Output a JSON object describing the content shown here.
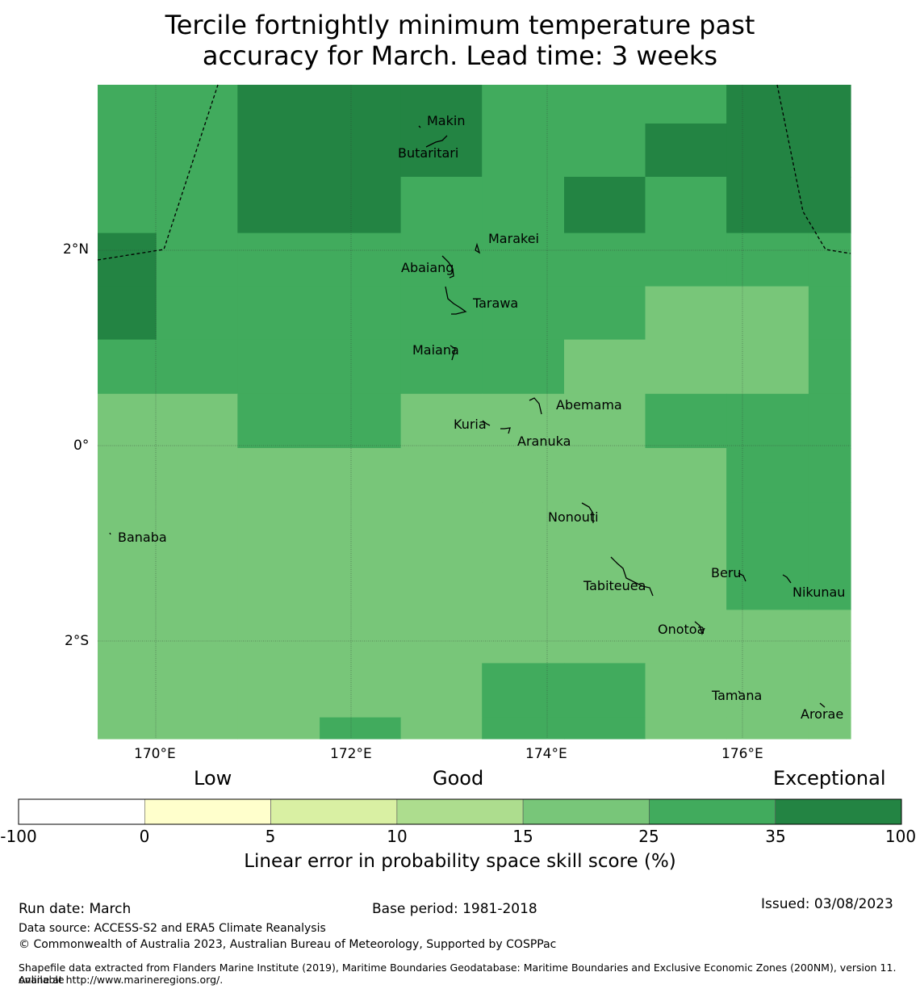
{
  "title_line1": "Tercile fortnightly minimum temperature past",
  "title_line2": "accuracy for March. Lead time: 3 weeks",
  "axes": {
    "lat_labels": [
      "2°N",
      "0°",
      "2°S"
    ],
    "lon_labels": [
      "170°E",
      "172°E",
      "174°E",
      "176°E"
    ]
  },
  "palette": {
    "c0": "#ffffff",
    "c1": "#ffffcc",
    "c2": "#d9f0a3",
    "c3": "#addd8e",
    "c4": "#78c679",
    "c5": "#41ab5d",
    "c6": "#238443"
  },
  "skill_grid": {
    "lat_edges": [
      3.75,
      3.35,
      2.8,
      2.22,
      1.67,
      1.12,
      0.56,
      0.0,
      -0.56,
      -1.67,
      -2.22,
      -2.78,
      -3.0
    ],
    "lon_edges": [
      169.4,
      170.0,
      170.83,
      171.67,
      172.5,
      173.33,
      174.17,
      175.0,
      175.83,
      176.67,
      177.1
    ],
    "rows": [
      [
        5,
        5,
        6,
        6,
        6,
        5,
        5,
        5,
        6,
        6
      ],
      [
        5,
        5,
        6,
        6,
        6,
        5,
        5,
        6,
        6,
        6
      ],
      [
        5,
        5,
        6,
        6,
        5,
        5,
        6,
        5,
        6,
        6
      ],
      [
        6,
        5,
        5,
        5,
        5,
        5,
        5,
        5,
        5,
        5
      ],
      [
        6,
        5,
        5,
        5,
        5,
        5,
        5,
        4,
        4,
        5
      ],
      [
        5,
        5,
        5,
        5,
        5,
        5,
        4,
        4,
        4,
        5
      ],
      [
        4,
        4,
        5,
        5,
        4,
        4,
        4,
        5,
        5,
        5
      ],
      [
        4,
        4,
        4,
        4,
        4,
        4,
        4,
        4,
        5,
        5
      ],
      [
        4,
        4,
        4,
        4,
        4,
        4,
        4,
        4,
        5,
        5
      ],
      [
        4,
        4,
        4,
        4,
        4,
        4,
        4,
        4,
        4,
        4
      ],
      [
        4,
        4,
        4,
        4,
        4,
        5,
        5,
        4,
        4,
        4
      ],
      [
        4,
        4,
        4,
        5,
        4,
        5,
        5,
        4,
        4,
        4
      ]
    ]
  },
  "islands": [
    {
      "name": "Makin",
      "lon": 172.99,
      "lat": 3.38
    },
    {
      "name": "Butaritari",
      "lon": 172.79,
      "lat": 3.07
    },
    {
      "name": "Marakei",
      "lon": 173.4,
      "lat": 2.1
    },
    {
      "name": "Abaiang",
      "lon": 172.78,
      "lat": 1.84
    },
    {
      "name": "Tarawa",
      "lon": 173.09,
      "lat": 1.48
    },
    {
      "name": "Maiana",
      "lon": 173.0,
      "lat": 0.93
    },
    {
      "name": "Abemama",
      "lon": 173.87,
      "lat": 0.4
    },
    {
      "name": "Kuria",
      "lon": 173.4,
      "lat": 0.23
    },
    {
      "name": "Aranuka",
      "lon": 173.6,
      "lat": 0.17
    },
    {
      "name": "Banaba",
      "lon": 169.53,
      "lat": -0.86
    },
    {
      "name": "Nonouti",
      "lon": 174.37,
      "lat": -0.66
    },
    {
      "name": "Beru",
      "lon": 176.0,
      "lat": -1.33
    },
    {
      "name": "Nikunau",
      "lon": 176.45,
      "lat": -1.37
    },
    {
      "name": "Tabiteuea",
      "lon": 174.79,
      "lat": -1.37
    },
    {
      "name": "Onotoa",
      "lon": 175.55,
      "lat": -1.85
    },
    {
      "name": "Tamana",
      "lon": 175.97,
      "lat": -2.5
    },
    {
      "name": "Arorae",
      "lon": 176.82,
      "lat": -2.64
    }
  ],
  "colorbar": {
    "category_low": "Low",
    "category_good": "Good",
    "category_exceptional": "Exceptional",
    "ticks": [
      "-100",
      "0",
      "5",
      "10",
      "15",
      "25",
      "35",
      "100"
    ],
    "title": "Linear error in probability space skill score (%)"
  },
  "footer": {
    "run_date": "Run date: March",
    "base_period": "Base period: 1981-2018",
    "issued": "Issued: 03/08/2023",
    "data_source": "Data source: ACCESS-S2 and ERA5 Climate Reanalysis",
    "copyright": "© Commonwealth of Australia 2023, Australian Bureau of Meteorology, Supported by COSPPac",
    "shapefile_line1": "Shapefile data extracted from Flanders Marine Institute (2019), Maritime Boundaries Geodatabase: Maritime Boundaries and Exclusive Economic Zones (200NM), version 11. Available",
    "shapefile_line2": "online at http://www.marineregions.org/."
  }
}
